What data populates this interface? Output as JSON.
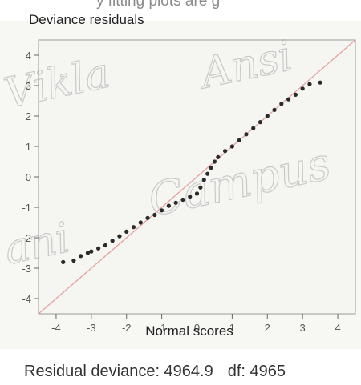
{
  "header": {
    "cropped_text": "y fitting plots are g"
  },
  "watermark": {
    "text": "Vikla Ansi Campus"
  },
  "footer": {
    "residual_deviance_label": "Residual deviance: 4964.9",
    "df_label": "df: 4965"
  },
  "colors": {
    "points": "#2a2a2a",
    "reference_line": "#e8a0a0",
    "frame": "#9a9a9a",
    "plot_background": "#f5f5f2"
  },
  "chart_data": {
    "type": "scatter",
    "title": "",
    "ylabel": "Deviance residuals",
    "xlabel": "Normal scores",
    "xlim": [
      -4.5,
      4.5
    ],
    "ylim": [
      -4.5,
      4.5
    ],
    "x_ticks": [
      "-4",
      "-3",
      "-2",
      "-1",
      "0",
      "1",
      "2",
      "3",
      "4"
    ],
    "y_ticks": [
      "4",
      "3",
      "2",
      "1",
      "0",
      "-1",
      "-2",
      "-3",
      "-4"
    ],
    "reference_line": {
      "slope": 1,
      "intercept": 0
    },
    "grid": false,
    "series": [
      {
        "x": [
          -3.8,
          -3.5,
          -3.3,
          -3.1,
          -3.0,
          -2.8,
          -2.6,
          -2.4,
          -2.2,
          -2.0,
          -1.8,
          -1.6,
          -1.4,
          -1.2,
          -1.0,
          -0.8,
          -0.6,
          -0.4,
          -0.2,
          0.0,
          0.1,
          0.2,
          0.3,
          0.4,
          0.5,
          0.6,
          0.8,
          1.0,
          1.2,
          1.4,
          1.6,
          1.8,
          2.0,
          2.2,
          2.4,
          2.6,
          2.8,
          3.0,
          3.2,
          3.5
        ],
        "y": [
          -2.8,
          -2.75,
          -2.6,
          -2.5,
          -2.45,
          -2.35,
          -2.25,
          -2.1,
          -1.95,
          -1.8,
          -1.65,
          -1.5,
          -1.35,
          -1.25,
          -1.1,
          -0.95,
          -0.85,
          -0.75,
          -0.65,
          -0.55,
          -0.35,
          -0.1,
          0.1,
          0.3,
          0.5,
          0.65,
          0.85,
          1.0,
          1.2,
          1.4,
          1.6,
          1.8,
          2.0,
          2.2,
          2.4,
          2.55,
          2.7,
          2.9,
          3.05,
          3.1
        ]
      }
    ]
  }
}
